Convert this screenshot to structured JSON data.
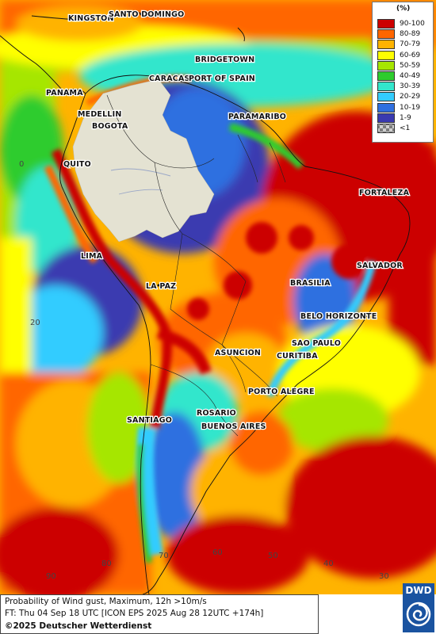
{
  "map": {
    "unit": "(%)",
    "legend": [
      {
        "label": "90-100",
        "color": "#cc0000"
      },
      {
        "label": "80-89",
        "color": "#ff6600"
      },
      {
        "label": "70-79",
        "color": "#ffb300"
      },
      {
        "label": "60-69",
        "color": "#ffff00"
      },
      {
        "label": "50-59",
        "color": "#a6e600"
      },
      {
        "label": "40-49",
        "color": "#2ecc2e"
      },
      {
        "label": "30-39",
        "color": "#33e6cc"
      },
      {
        "label": "20-29",
        "color": "#33ccff"
      },
      {
        "label": "10-19",
        "color": "#2f6fe0"
      },
      {
        "label": "1-9",
        "color": "#3a3ab0"
      },
      {
        "label": "<1",
        "color": "#d9d9c8"
      }
    ],
    "cities": [
      {
        "name": "KINGSTON"
      },
      {
        "name": "SANTO DOMINGO"
      },
      {
        "name": "BRIDGETOWN"
      },
      {
        "name": "CARACAS"
      },
      {
        "name": "PORT OF SPAIN"
      },
      {
        "name": "PANAMA"
      },
      {
        "name": "MEDELLIN"
      },
      {
        "name": "BOGOTA"
      },
      {
        "name": "PARAMARIBO"
      },
      {
        "name": "QUITO"
      },
      {
        "name": "FORTALEZA"
      },
      {
        "name": "LIMA"
      },
      {
        "name": "SALVADOR"
      },
      {
        "name": "BRASILIA"
      },
      {
        "name": "LA PAZ"
      },
      {
        "name": "BELO HORIZONTE"
      },
      {
        "name": "SAO PAULO"
      },
      {
        "name": "ASUNCION"
      },
      {
        "name": "CURITIBA"
      },
      {
        "name": "PORTO ALEGRE"
      },
      {
        "name": "ROSARIO"
      },
      {
        "name": "SANTIAGO"
      },
      {
        "name": "BUENOS AIRES"
      }
    ],
    "grid_labels": [
      "0",
      "20",
      "90",
      "80",
      "70",
      "60",
      "50",
      "40",
      "30"
    ]
  },
  "footer": {
    "line1": "Probability of Wind gust, Maximum, 12h >10m/s",
    "line2": "FT: Thu 04 Sep 18 UTC [ICON EPS 2025 Aug 28 12UTC +174h]",
    "line3": "©2025 Deutscher Wetterdienst"
  },
  "logo": {
    "text": "DWD",
    "color": "#1a53a0"
  }
}
